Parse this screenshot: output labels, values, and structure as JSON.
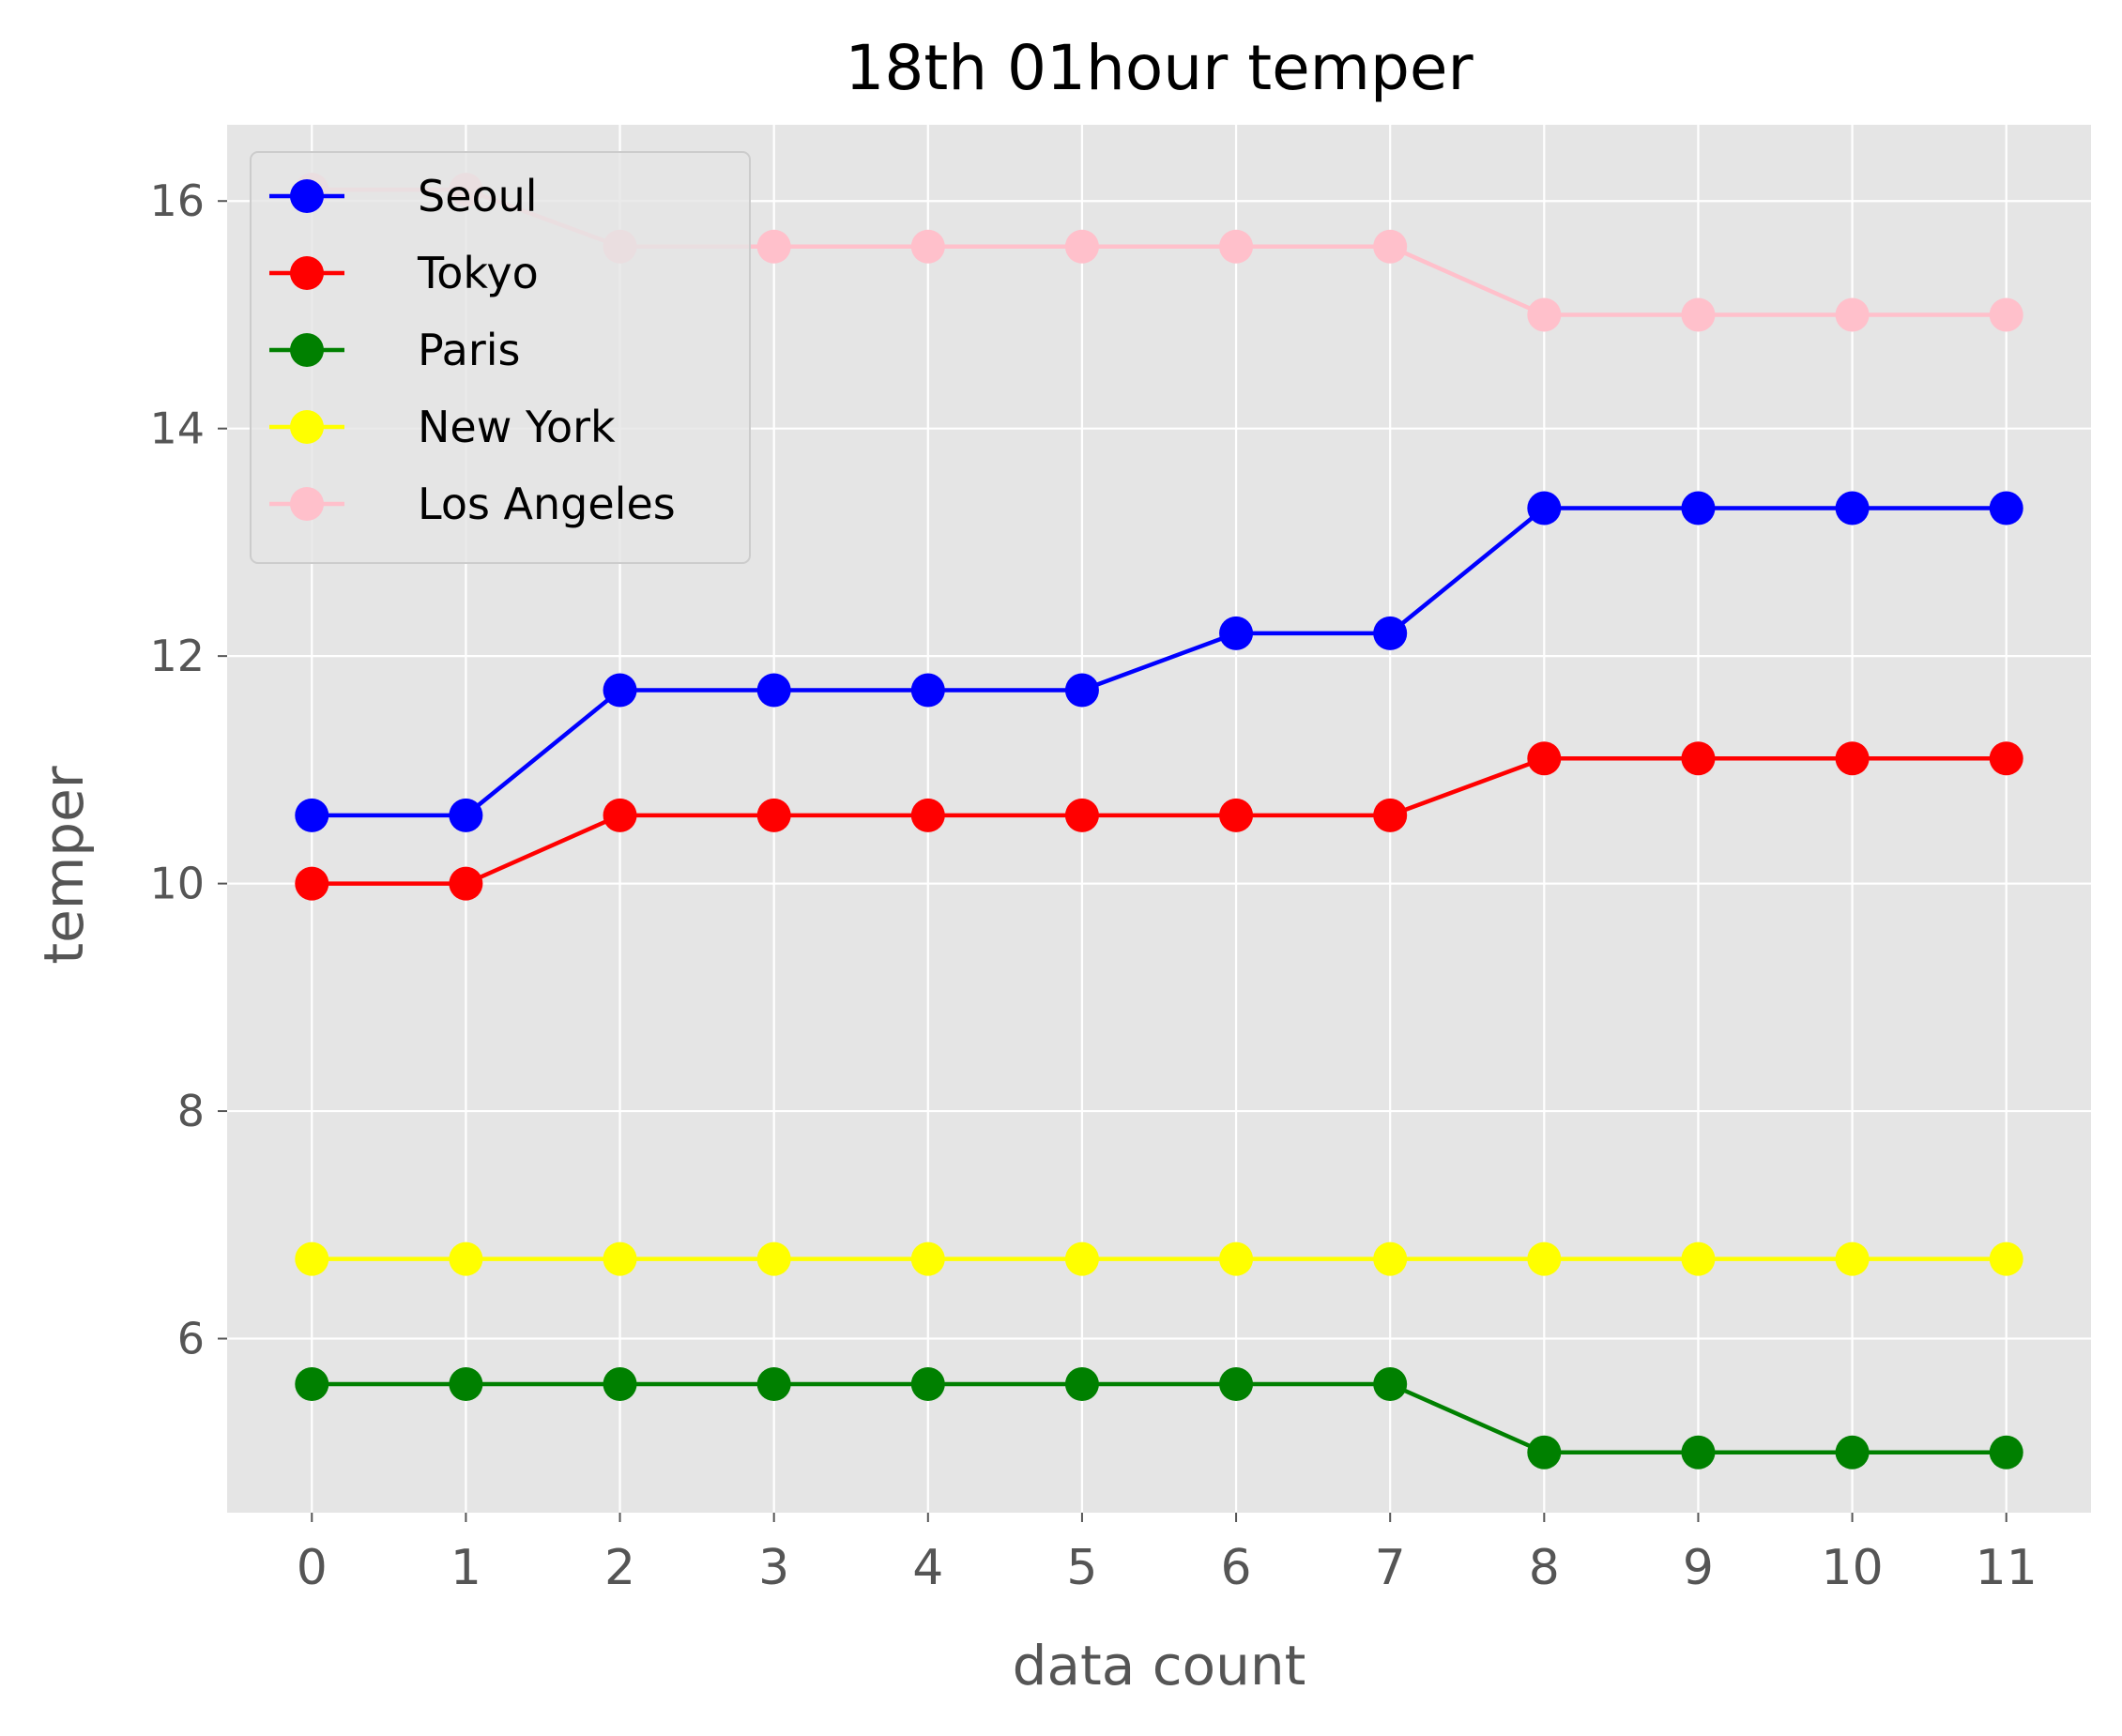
{
  "chart_data": {
    "type": "line",
    "title": "18th 01hour temper",
    "xlabel": "data count",
    "ylabel": "temper",
    "x": [
      0,
      1,
      2,
      3,
      4,
      5,
      6,
      7,
      8,
      9,
      10,
      11
    ],
    "xlim": [
      -0.55,
      11.55
    ],
    "ylim": [
      4.47,
      16.67
    ],
    "yticks": [
      6,
      8,
      10,
      12,
      14,
      16
    ],
    "grid": true,
    "legend_position": "upper left",
    "series": [
      {
        "name": "Seoul",
        "color": "#0000ff",
        "values": [
          10.6,
          10.6,
          11.7,
          11.7,
          11.7,
          11.7,
          12.2,
          12.2,
          13.3,
          13.3,
          13.3,
          13.3
        ]
      },
      {
        "name": "Tokyo",
        "color": "#ff0000",
        "values": [
          10.0,
          10.0,
          10.6,
          10.6,
          10.6,
          10.6,
          10.6,
          10.6,
          11.1,
          11.1,
          11.1,
          11.1
        ]
      },
      {
        "name": "Paris",
        "color": "#008000",
        "values": [
          5.6,
          5.6,
          5.6,
          5.6,
          5.6,
          5.6,
          5.6,
          5.6,
          5.0,
          5.0,
          5.0,
          5.0
        ]
      },
      {
        "name": "New York",
        "color": "#ffff00",
        "values": [
          6.7,
          6.7,
          6.7,
          6.7,
          6.7,
          6.7,
          6.7,
          6.7,
          6.7,
          6.7,
          6.7,
          6.7
        ]
      },
      {
        "name": "Los Angeles",
        "color": "#ffc0cb",
        "values": [
          16.1,
          16.1,
          15.6,
          15.6,
          15.6,
          15.6,
          15.6,
          15.6,
          15.0,
          15.0,
          15.0,
          15.0
        ]
      }
    ]
  }
}
